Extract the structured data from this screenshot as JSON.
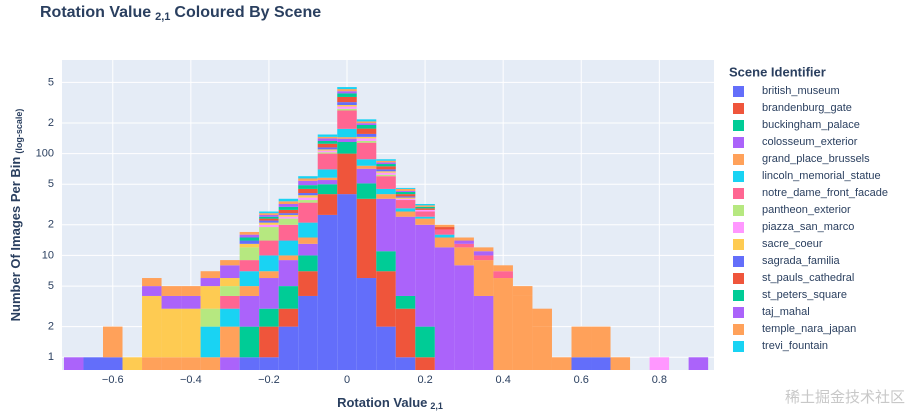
{
  "chart_data": {
    "type": "histogram",
    "title": {
      "main": "Rotation Value",
      "sub": "2,1",
      "rest": "Coloured By Scene"
    },
    "x_label": {
      "main": "Rotation Value",
      "sub": "2,1"
    },
    "y_label": {
      "main": "Number Of Images Per Bin",
      "sub": "(log-scale)"
    },
    "legend_title": "Scene Identifier",
    "legend_position": "right",
    "log_y": true,
    "stacked": true,
    "grid": true,
    "watermark": "稀土掘金技术社区",
    "bins": [
      -0.725,
      -0.675,
      -0.625,
      -0.575,
      -0.525,
      -0.475,
      -0.425,
      -0.375,
      -0.325,
      -0.275,
      -0.225,
      -0.175,
      -0.125,
      -0.075,
      -0.025,
      0.025,
      0.075,
      0.125,
      0.175,
      0.225,
      0.275,
      0.325,
      0.375,
      0.425,
      0.475,
      0.525,
      0.575,
      0.625,
      0.675,
      0.725,
      0.775,
      0.825,
      0.875,
      0.925
    ],
    "xlim": [
      -0.73,
      0.94
    ],
    "xticks": [
      {
        "value": -0.6,
        "label": "−0.6"
      },
      {
        "value": -0.4,
        "label": "−0.4"
      },
      {
        "value": -0.2,
        "label": "−0.2"
      },
      0,
      0.2,
      0.4,
      0.6,
      0.8
    ],
    "ylim": [
      0.75,
      830
    ],
    "yticks": [
      1,
      2,
      5,
      10,
      {
        "value": 20,
        "label": "2"
      },
      {
        "value": 50,
        "label": "5"
      },
      100,
      {
        "value": 200,
        "label": "2"
      },
      {
        "value": 500,
        "label": "5"
      }
    ],
    "series": [
      {
        "name": "british_museum",
        "color": "#636efa",
        "values": [
          0,
          0,
          1,
          0,
          0,
          0,
          0,
          0,
          0,
          1,
          1,
          2,
          4,
          25,
          40,
          6,
          2,
          1,
          0,
          0,
          0,
          0,
          0,
          0,
          0,
          0,
          1,
          0,
          0,
          0,
          0,
          0,
          0
        ]
      },
      {
        "name": "brandenburg_gate",
        "color": "#EF553B",
        "values": [
          0,
          0,
          0,
          0,
          0,
          0,
          0,
          0,
          0,
          0,
          1,
          1,
          3,
          15,
          60,
          30,
          5,
          2,
          1,
          0,
          0,
          0,
          0,
          0,
          0,
          0,
          0,
          0,
          0,
          0,
          0,
          0,
          0
        ]
      },
      {
        "name": "buckingham_palace",
        "color": "#00cc96",
        "values": [
          0,
          0,
          0,
          0,
          0,
          0,
          0,
          0,
          0,
          1,
          1,
          2,
          3,
          10,
          30,
          15,
          4,
          1,
          1,
          0,
          0,
          0,
          0,
          0,
          0,
          0,
          0,
          0,
          0,
          0,
          0,
          0,
          0
        ]
      },
      {
        "name": "colosseum_exterior",
        "color": "#ab63fa",
        "values": [
          0,
          0,
          0,
          0,
          0,
          0,
          0,
          0,
          1,
          2,
          3,
          4,
          3,
          5,
          10,
          20,
          25,
          20,
          18,
          12,
          8,
          4,
          0,
          0,
          0,
          0,
          0,
          0,
          0,
          0,
          0,
          0,
          0
        ]
      },
      {
        "name": "grand_place_brussels",
        "color": "#FFA15A",
        "values": [
          0,
          0,
          0,
          0,
          1,
          1,
          1,
          1,
          1,
          1,
          1,
          1,
          2,
          3,
          5,
          5,
          4,
          3,
          3,
          3,
          4,
          5,
          6,
          4,
          2,
          1,
          0,
          0,
          0,
          0,
          0,
          0,
          0
        ]
      },
      {
        "name": "lincoln_memorial_statue",
        "color": "#19d3f3",
        "values": [
          0,
          0,
          0,
          0,
          0,
          0,
          0,
          1,
          1,
          2,
          3,
          4,
          6,
          12,
          30,
          12,
          5,
          2,
          1,
          1,
          0,
          0,
          0,
          0,
          0,
          0,
          0,
          0,
          0,
          0,
          0,
          0,
          0
        ]
      },
      {
        "name": "notre_dame_front_facade",
        "color": "#FF6692",
        "values": [
          0,
          0,
          0,
          0,
          0,
          0,
          0,
          0,
          1,
          2,
          4,
          6,
          12,
          30,
          90,
          40,
          15,
          6,
          3,
          2,
          1,
          1,
          1,
          0,
          0,
          0,
          0,
          0,
          0,
          0,
          0,
          0,
          0
        ]
      },
      {
        "name": "pantheon_exterior",
        "color": "#B6E880",
        "values": [
          0,
          0,
          0,
          0,
          0,
          0,
          0,
          1,
          1,
          3,
          5,
          3,
          2,
          3,
          10,
          5,
          2,
          0,
          0,
          0,
          0,
          0,
          0,
          0,
          0,
          0,
          0,
          0,
          0,
          0,
          0,
          0,
          0
        ]
      },
      {
        "name": "piazza_san_marco",
        "color": "#FF97FF",
        "values": [
          0,
          0,
          0,
          0,
          0,
          0,
          0,
          0,
          0,
          0,
          1,
          1,
          2,
          4,
          15,
          8,
          3,
          1,
          1,
          0,
          0,
          0,
          0,
          0,
          0,
          0,
          0,
          0,
          0,
          0,
          1,
          0,
          0
        ]
      },
      {
        "name": "sacre_coeur",
        "color": "#FECB52",
        "values": [
          0,
          0,
          0,
          1,
          3,
          2,
          2,
          2,
          1,
          1,
          1,
          1,
          2,
          3,
          10,
          5,
          2,
          1,
          0,
          0,
          0,
          0,
          0,
          0,
          0,
          0,
          0,
          0,
          0,
          0,
          0,
          0,
          0
        ]
      },
      {
        "name": "sagrada_familia",
        "color": "#636efa",
        "values": [
          0,
          1,
          0,
          0,
          0,
          0,
          0,
          0,
          0,
          1,
          1,
          1,
          2,
          5,
          20,
          10,
          3,
          1,
          0,
          0,
          0,
          0,
          0,
          0,
          0,
          0,
          0,
          1,
          0,
          0,
          0,
          0,
          0
        ]
      },
      {
        "name": "st_pauls_cathedral",
        "color": "#EF553B",
        "values": [
          0,
          0,
          0,
          0,
          0,
          0,
          0,
          0,
          0,
          0,
          1,
          2,
          4,
          10,
          40,
          20,
          5,
          2,
          1,
          1,
          0,
          0,
          0,
          0,
          0,
          0,
          0,
          0,
          0,
          0,
          0,
          0,
          0
        ]
      },
      {
        "name": "st_peters_square",
        "color": "#00cc96",
        "values": [
          0,
          0,
          0,
          0,
          0,
          0,
          0,
          0,
          0,
          1,
          1,
          2,
          4,
          8,
          30,
          15,
          4,
          2,
          1,
          0,
          0,
          0,
          0,
          0,
          0,
          0,
          0,
          0,
          0,
          0,
          0,
          0,
          0
        ]
      },
      {
        "name": "taj_mahal",
        "color": "#ab63fa",
        "values": [
          1,
          0,
          0,
          0,
          1,
          1,
          1,
          1,
          2,
          1,
          1,
          2,
          5,
          8,
          20,
          8,
          3,
          1,
          0,
          0,
          1,
          1,
          0,
          0,
          0,
          0,
          0,
          0,
          0,
          0,
          0,
          0,
          1
        ]
      },
      {
        "name": "temple_nara_japan",
        "color": "#FFA15A",
        "values": [
          0,
          0,
          1,
          0,
          1,
          1,
          1,
          1,
          1,
          1,
          1,
          2,
          3,
          5,
          20,
          8,
          3,
          2,
          1,
          1,
          1,
          1,
          1,
          1,
          1,
          0,
          1,
          1,
          1,
          0,
          0,
          0,
          0
        ]
      },
      {
        "name": "trevi_fountain",
        "color": "#19d3f3",
        "values": [
          0,
          0,
          0,
          0,
          0,
          0,
          0,
          0,
          0,
          0,
          1,
          2,
          3,
          8,
          20,
          10,
          3,
          1,
          1,
          0,
          0,
          0,
          0,
          0,
          0,
          0,
          0,
          0,
          0,
          0,
          0,
          0,
          0
        ]
      }
    ]
  }
}
